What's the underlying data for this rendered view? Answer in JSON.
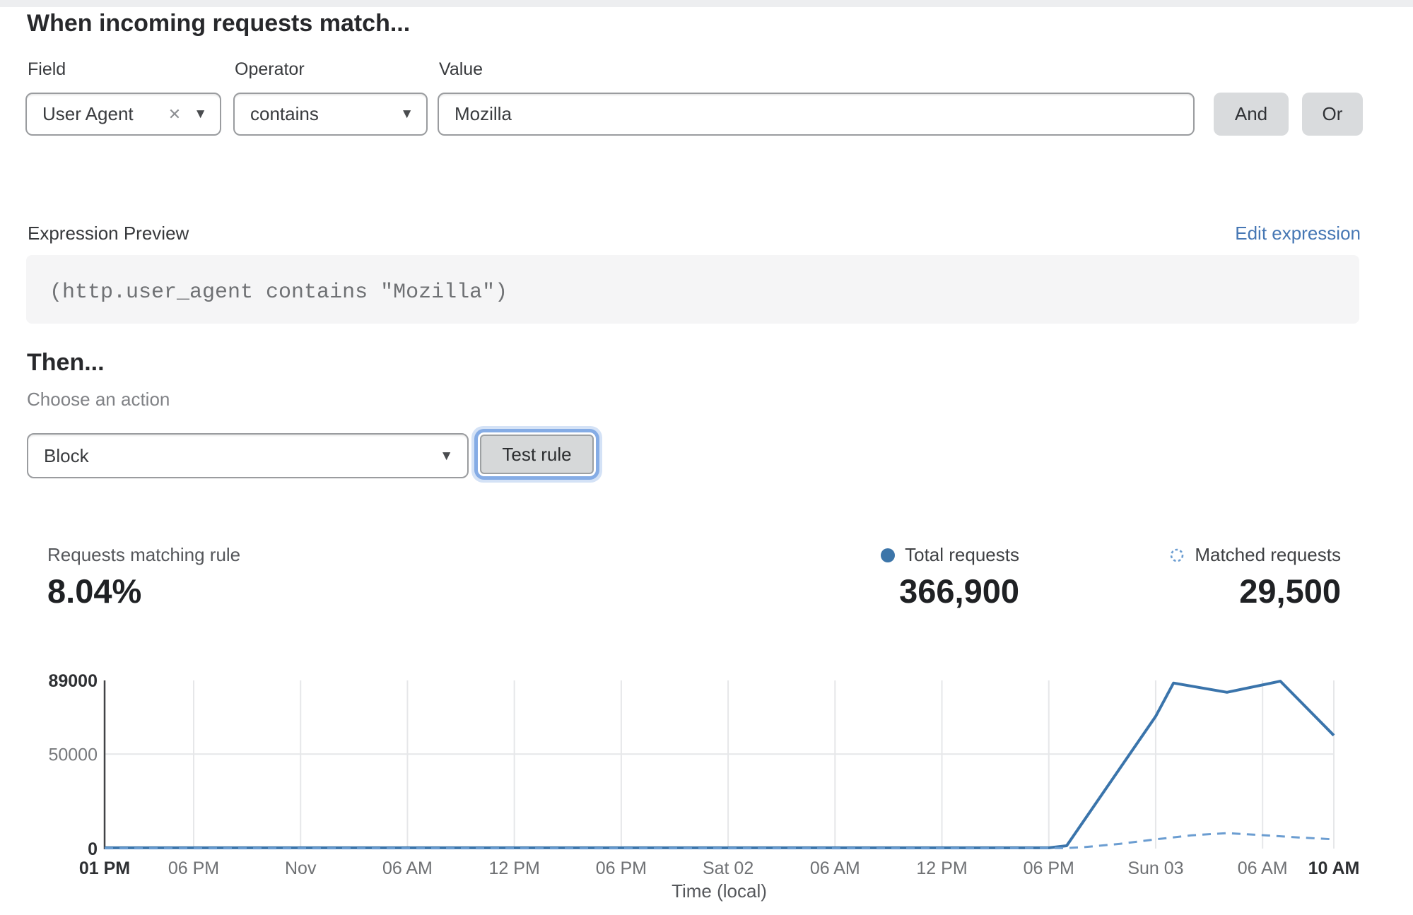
{
  "icons": {
    "chevron": "▼",
    "clear": "✕"
  },
  "rule_builder": {
    "heading": "When incoming requests match...",
    "field": {
      "label": "Field",
      "value": "User Agent"
    },
    "operator": {
      "label": "Operator",
      "value": "contains"
    },
    "value": {
      "label": "Value",
      "value": "Mozilla"
    },
    "and_label": "And",
    "or_label": "Or"
  },
  "expression": {
    "label": "Expression Preview",
    "edit_link": "Edit expression",
    "code": "(http.user_agent contains \"Mozilla\")"
  },
  "action": {
    "heading": "Then...",
    "choose_label": "Choose an action",
    "selected": "Block",
    "test_button": "Test rule"
  },
  "stats": {
    "match_rate": {
      "label": "Requests matching rule",
      "value": "8.04%"
    },
    "total": {
      "label": "Total requests",
      "value": "366,900"
    },
    "matched": {
      "label": "Matched requests",
      "value": "29,500"
    }
  },
  "chart_data": {
    "type": "line",
    "xlabel": "Time (local)",
    "ylabel": "",
    "x_unit": "hours from Thu Oct 31 1:00 PM (local)",
    "x_range": [
      0,
      69
    ],
    "ylim": [
      0,
      89000
    ],
    "grid": "vertical line per x tick, horizontal line at 50000",
    "legend_position": "above-right",
    "y_ticks": [
      {
        "label": "89000",
        "value": 89000,
        "bold": true
      },
      {
        "label": "50000",
        "value": 50000,
        "bold": false
      },
      {
        "label": "0",
        "value": 0,
        "bold": true
      }
    ],
    "x_ticks": [
      {
        "label": "01 PM",
        "t": 0,
        "bold": true
      },
      {
        "label": "06 PM",
        "t": 5,
        "bold": false
      },
      {
        "label": "Nov",
        "t": 11,
        "bold": false
      },
      {
        "label": "06 AM",
        "t": 17,
        "bold": false
      },
      {
        "label": "12 PM",
        "t": 23,
        "bold": false
      },
      {
        "label": "06 PM",
        "t": 29,
        "bold": false
      },
      {
        "label": "Sat 02",
        "t": 35,
        "bold": false
      },
      {
        "label": "06 AM",
        "t": 41,
        "bold": false
      },
      {
        "label": "12 PM",
        "t": 47,
        "bold": false
      },
      {
        "label": "06 PM",
        "t": 53,
        "bold": false
      },
      {
        "label": "Sun 03",
        "t": 59,
        "bold": false
      },
      {
        "label": "06 AM",
        "t": 65,
        "bold": false
      },
      {
        "label": "10 AM",
        "t": 69,
        "bold": true
      }
    ],
    "series": [
      {
        "name": "Total requests",
        "style": "solid",
        "color": "#3a74ab",
        "width": 4,
        "points": [
          [
            0,
            400
          ],
          [
            10,
            400
          ],
          [
            20,
            400
          ],
          [
            30,
            400
          ],
          [
            40,
            400
          ],
          [
            50,
            400
          ],
          [
            53,
            400
          ],
          [
            54,
            1500
          ],
          [
            59,
            70000
          ],
          [
            60,
            87600
          ],
          [
            63,
            82700
          ],
          [
            66,
            88600
          ],
          [
            69,
            59900
          ]
        ]
      },
      {
        "name": "Matched requests",
        "style": "dashed",
        "color": "#6b9dd1",
        "width": 3,
        "points": [
          [
            0,
            150
          ],
          [
            10,
            150
          ],
          [
            20,
            150
          ],
          [
            30,
            150
          ],
          [
            40,
            150
          ],
          [
            50,
            150
          ],
          [
            54,
            300
          ],
          [
            55,
            800
          ],
          [
            57,
            2500
          ],
          [
            59,
            4900
          ],
          [
            61,
            7000
          ],
          [
            63,
            8200
          ],
          [
            65,
            7100
          ],
          [
            67,
            5900
          ],
          [
            69,
            4900
          ]
        ]
      }
    ]
  }
}
